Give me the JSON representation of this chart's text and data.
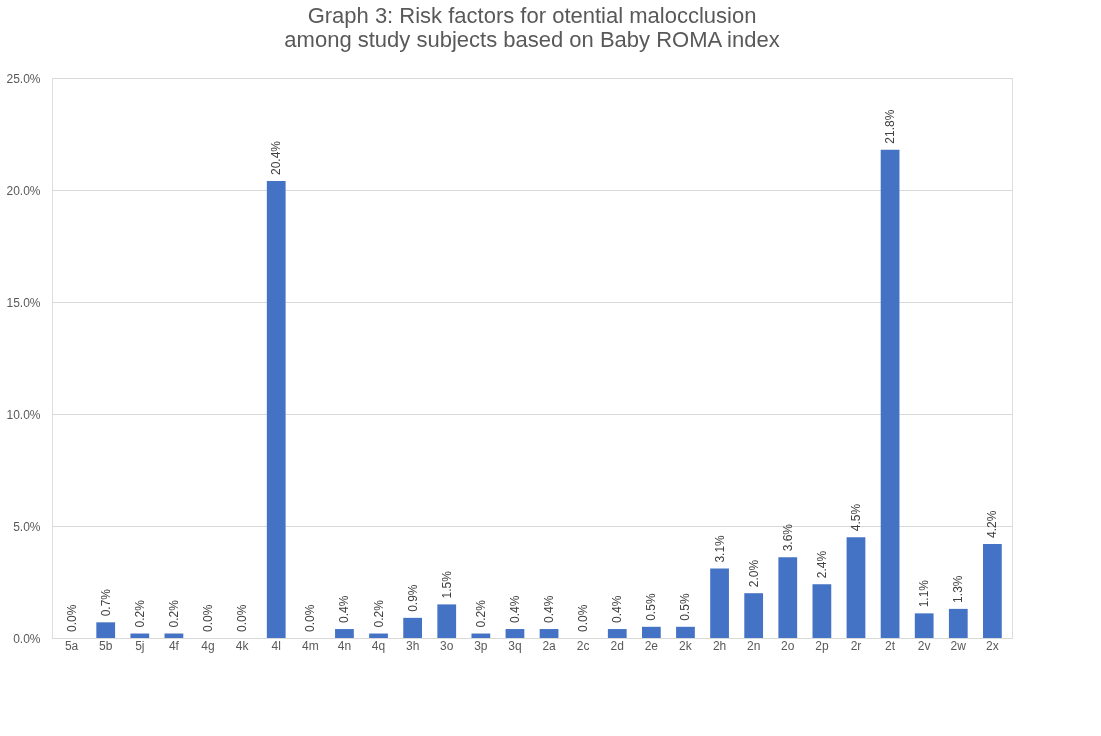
{
  "chart_data": {
    "type": "bar",
    "title": "Graph 3: Risk factors for otential malocclusion among study subjects based on Baby ROMA index",
    "categories": [
      "5a",
      "5b",
      "5j",
      "4f",
      "4g",
      "4k",
      "4l",
      "4m",
      "4n",
      "4q",
      "3h",
      "3o",
      "3p",
      "3q",
      "2a",
      "2c",
      "2d",
      "2e",
      "2k",
      "2h",
      "2n",
      "2o",
      "2p",
      "2r",
      "2t",
      "2v",
      "2w",
      "2x"
    ],
    "values": [
      0.0,
      0.7,
      0.2,
      0.2,
      0.0,
      0.0,
      20.4,
      0.0,
      0.4,
      0.2,
      0.9,
      1.5,
      0.2,
      0.4,
      0.4,
      0.0,
      0.4,
      0.5,
      0.5,
      3.1,
      2.0,
      3.6,
      2.4,
      4.5,
      21.8,
      1.1,
      1.3,
      4.2
    ],
    "value_labels": [
      "0.0%",
      "0.7%",
      "0.2%",
      "0.2%",
      "0.0%",
      "0.0%",
      "20.4%",
      "0.0%",
      "0.4%",
      "0.2%",
      "0.9%",
      "1.5%",
      "0.2%",
      "0.4%",
      "0.4%",
      "0.0%",
      "0.4%",
      "0.5%",
      "0.5%",
      "3.1%",
      "2.0%",
      "3.6%",
      "2.4%",
      "4.5%",
      "21.8%",
      "1.1%",
      "1.3%",
      "4.2%"
    ],
    "color": "#4472c4",
    "ylim": [
      0,
      25
    ],
    "yticks": [
      {
        "value": 0,
        "label": "0.0%"
      },
      {
        "value": 5,
        "label": "5.0%"
      },
      {
        "value": 10,
        "label": "10.0%"
      },
      {
        "value": 15,
        "label": "15.0%"
      },
      {
        "value": 20,
        "label": "20.0%"
      },
      {
        "value": 25,
        "label": "25.0%"
      }
    ],
    "grid": "y"
  }
}
